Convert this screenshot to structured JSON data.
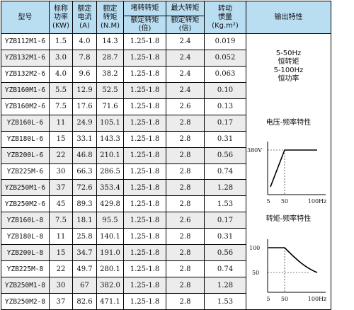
{
  "headers": {
    "model": "型号",
    "power": [
      "标称",
      "功率",
      "(KW)"
    ],
    "current": [
      "额定",
      "电流",
      "(A)"
    ],
    "torque": [
      "额定",
      "转矩",
      "(N.M)"
    ],
    "stall": "堵转转矩",
    "stall_sub": [
      "额定转矩",
      "(倍)"
    ],
    "max": "最大转矩",
    "max_sub": [
      "额定转矩",
      "(倍)"
    ],
    "inertia": [
      "转动",
      "惯量",
      "(Kg.m²)"
    ],
    "output": "输出特性"
  },
  "rows": [
    {
      "model": "YZB112M1-6",
      "kw": "1.5",
      "a": "4.0",
      "nm": "14.3",
      "stall": "1.25-1.8",
      "max": "2.4",
      "inertia": "0.019"
    },
    {
      "model": "YZB132M1-6",
      "kw": "3.0",
      "a": "7.8",
      "nm": "28.7",
      "stall": "1.25-1.8",
      "max": "2.4",
      "inertia": "0.052"
    },
    {
      "model": "YZB132M2-6",
      "kw": "4.0",
      "a": "9.6",
      "nm": "38.2",
      "stall": "1.25-1.8",
      "max": "2.4",
      "inertia": "0.063"
    },
    {
      "model": "YZB160M1-6",
      "kw": "5.5",
      "a": "12.9",
      "nm": "52.5",
      "stall": "1.25-1.8",
      "max": "2.4",
      "inertia": "0.10"
    },
    {
      "model": "YZB160M2-6",
      "kw": "7.5",
      "a": "17.6",
      "nm": "71.6",
      "stall": "1.25-1.8",
      "max": "2.6",
      "inertia": "0.13"
    },
    {
      "model": "YZB160L-6",
      "kw": "11",
      "a": "24.9",
      "nm": "105.1",
      "stall": "1.25-1.8",
      "max": "2.8",
      "inertia": "0.17"
    },
    {
      "model": "YZB180L-6",
      "kw": "15",
      "a": "33.1",
      "nm": "143.3",
      "stall": "1.25-1.8",
      "max": "2.8",
      "inertia": "0.31"
    },
    {
      "model": "YZB200L-6",
      "kw": "22",
      "a": "46.8",
      "nm": "210.1",
      "stall": "1.25-1.8",
      "max": "2.8",
      "inertia": "0.56"
    },
    {
      "model": "YZB225M-6",
      "kw": "30",
      "a": "66.3",
      "nm": "286.5",
      "stall": "1.25-1.8",
      "max": "2.8",
      "inertia": "0.74"
    },
    {
      "model": "YZB250M1-6",
      "kw": "37",
      "a": "72.6",
      "nm": "353.4",
      "stall": "1.25-1.8",
      "max": "2.8",
      "inertia": "1.28"
    },
    {
      "model": "YZB250M2-6",
      "kw": "45",
      "a": "89.3",
      "nm": "429.8",
      "stall": "1.25-1.8",
      "max": "2.8",
      "inertia": "1.53"
    },
    {
      "model": "YZB160L-8",
      "kw": "7.5",
      "a": "18.1",
      "nm": "95.5",
      "stall": "1.25-1.8",
      "max": "2.6",
      "inertia": "0.17"
    },
    {
      "model": "YZB180L-8",
      "kw": "11",
      "a": "25.8",
      "nm": "140.1",
      "stall": "1.25-1.8",
      "max": "2.8",
      "inertia": "0.31"
    },
    {
      "model": "YZB200L-8",
      "kw": "15",
      "a": "34.7",
      "nm": "191.0",
      "stall": "1.25-1.8",
      "max": "2.8",
      "inertia": "0.56"
    },
    {
      "model": "YZB225M-8",
      "kw": "22",
      "a": "49.7",
      "nm": "280.1",
      "stall": "1.25-1.8",
      "max": "2.8",
      "inertia": "0.74"
    },
    {
      "model": "YZB250M1-8",
      "kw": "30",
      "a": "67",
      "nm": "382.0",
      "stall": "1.25-1.8",
      "max": "2.8",
      "inertia": "1.28"
    },
    {
      "model": "YZB250M2-8",
      "kw": "37",
      "a": "82.6",
      "nm": "471.1",
      "stall": "1.25-1.8",
      "max": "2.8",
      "inertia": "1.53"
    }
  ],
  "output": {
    "lines": [
      "5-50Hz",
      "恒转矩",
      "5-100Hz",
      "恒功率"
    ],
    "voltage_title": "电压-频率特性",
    "voltage_y": "380V",
    "voltage_x": [
      "5",
      "50",
      "100Hz"
    ],
    "torque_title": "转矩-频率特性",
    "torque_y": [
      "100",
      "50"
    ],
    "torque_x": [
      "5",
      "50",
      "100Hz"
    ]
  }
}
